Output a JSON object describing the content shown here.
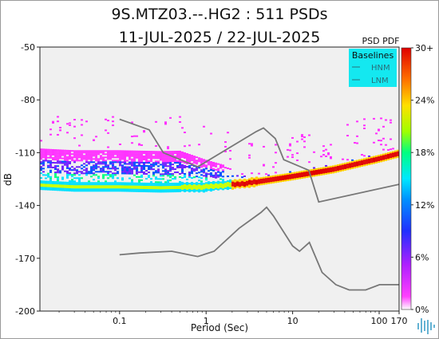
{
  "chart_data": {
    "type": "heatmap",
    "title_line1": "9S.MTZ03.--.HG2 : 511 PSDs",
    "title_line2": "11-JUL-2025 / 22-JUL-2025",
    "xlabel": "Period (Sec)",
    "ylabel": "dB",
    "xscale": "log",
    "xlim": [
      0.012,
      170
    ],
    "ylim": [
      -200,
      -50
    ],
    "x_ticks": [
      {
        "value": 0.1,
        "label": "0.1"
      },
      {
        "value": 1,
        "label": "1"
      },
      {
        "value": 10,
        "label": "10"
      },
      {
        "value": 100,
        "label": "100"
      },
      {
        "value": 170,
        "label": "170"
      }
    ],
    "y_ticks": [
      {
        "value": -50,
        "label": "-50"
      },
      {
        "value": -80,
        "label": "-80"
      },
      {
        "value": -110,
        "label": "-110"
      },
      {
        "value": -140,
        "label": "-140"
      },
      {
        "value": -170,
        "label": "-170"
      },
      {
        "value": -200,
        "label": "-200"
      }
    ],
    "colorbar": {
      "title": "PSD PDF",
      "labels": [
        "0%",
        "6%",
        "12%",
        "18%",
        "24%",
        "30+"
      ]
    },
    "legend": {
      "title": "Baselines",
      "entries": [
        "HNM",
        "LNM"
      ],
      "placement": "top-right"
    },
    "baselines": {
      "HNM": [
        [
          0.1,
          -91
        ],
        [
          0.22,
          -97
        ],
        [
          0.32,
          -110
        ],
        [
          0.8,
          -118
        ],
        [
          3.8,
          -98
        ],
        [
          4.6,
          -96
        ],
        [
          6.3,
          -102
        ],
        [
          7.9,
          -114
        ],
        [
          15.4,
          -120
        ],
        [
          20,
          -138
        ],
        [
          170,
          -128
        ]
      ],
      "LNM": [
        [
          0.1,
          -168
        ],
        [
          0.17,
          -167
        ],
        [
          0.4,
          -166
        ],
        [
          0.8,
          -169
        ],
        [
          1.24,
          -166
        ],
        [
          2.4,
          -153
        ],
        [
          4.3,
          -144
        ],
        [
          5,
          -141
        ],
        [
          6,
          -146
        ],
        [
          10,
          -163
        ],
        [
          12,
          -166
        ],
        [
          15.6,
          -161
        ],
        [
          21.9,
          -178
        ],
        [
          31.6,
          -185
        ],
        [
          45,
          -188
        ],
        [
          70,
          -188
        ],
        [
          101,
          -185
        ],
        [
          170,
          -185
        ]
      ]
    },
    "pdf_ridge": {
      "periods": [
        0.012,
        0.03,
        0.1,
        0.3,
        1,
        3,
        10,
        30,
        100,
        170
      ],
      "db": [
        -128,
        -129,
        -129,
        -129.5,
        -129,
        -127,
        -123,
        -119,
        -113,
        -110
      ]
    },
    "background_color": "#f0f0f0"
  },
  "colorbar_colors": [
    "#ffffff",
    "#ff30ff",
    "#7020ff",
    "#0050ff",
    "#00e0ff",
    "#00ff80",
    "#c8ff00",
    "#ffd000",
    "#ff5000",
    "#e00000"
  ]
}
